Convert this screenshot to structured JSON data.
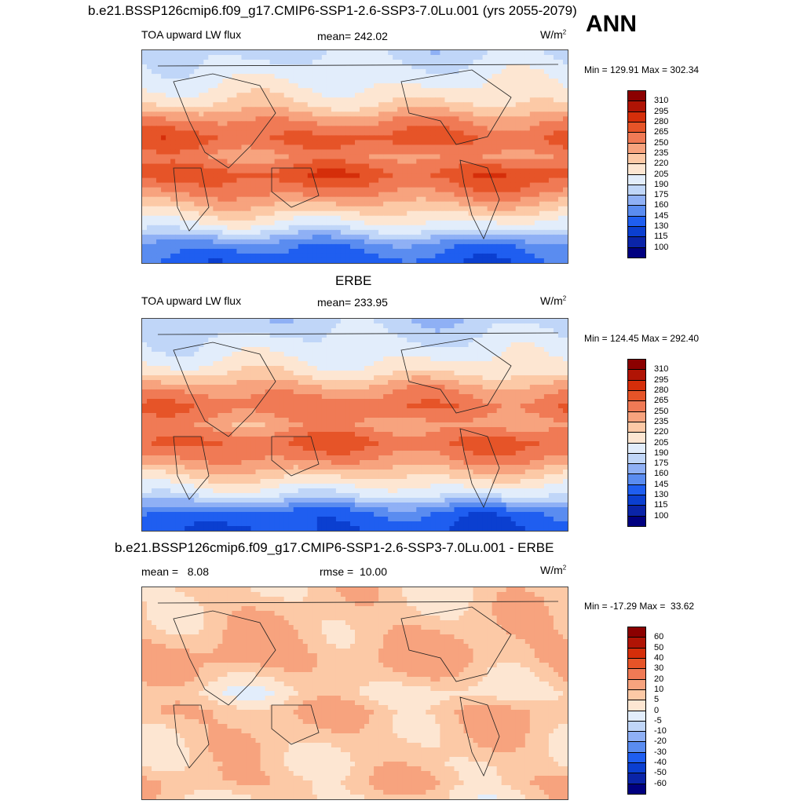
{
  "header": {
    "title": "b.e21.BSSP126cmip6.f09_g17.CMIP6-SSP1-2.6-SSP3-7.0Lu.001 (yrs 2055-2079)",
    "season": "ANN"
  },
  "panels": [
    {
      "id": "model",
      "title": "",
      "left_label": "TOA upward LW flux",
      "center_label": "mean= 242.02",
      "units": "W/m",
      "units_sup": "2",
      "minmax": "Min = 129.91 Max = 302.34",
      "colorbar": [
        "310",
        "295",
        "280",
        "265",
        "250",
        "235",
        "220",
        "205",
        "190",
        "175",
        "160",
        "145",
        "130",
        "115",
        "100"
      ]
    },
    {
      "id": "obs",
      "title": "ERBE",
      "left_label": "TOA upward LW flux",
      "center_label": "mean= 233.95",
      "units": "W/m",
      "units_sup": "2",
      "minmax": "Min = 124.45 Max = 292.40",
      "colorbar": [
        "310",
        "295",
        "280",
        "265",
        "250",
        "235",
        "220",
        "205",
        "190",
        "175",
        "160",
        "145",
        "130",
        "115",
        "100"
      ]
    },
    {
      "id": "diff",
      "title": "b.e21.BSSP126cmip6.f09_g17.CMIP6-SSP1-2.6-SSP3-7.0Lu.001 - ERBE",
      "left_label": "mean =   8.08",
      "center_label": "rmse =  10.00",
      "units": "W/m",
      "units_sup": "2",
      "minmax": "Min = -17.29 Max =  33.62",
      "colorbar": [
        "60",
        "50",
        "40",
        "30",
        "20",
        "10",
        "5",
        "0",
        "-5",
        "-10",
        "-20",
        "-30",
        "-40",
        "-50",
        "-60"
      ]
    }
  ],
  "chart_data": [
    {
      "type": "heatmap",
      "title": "",
      "variable": "TOA upward LW flux",
      "units": "W/m2",
      "mean": 242.02,
      "min": 129.91,
      "max": 302.34,
      "levels": [
        100,
        115,
        130,
        145,
        160,
        175,
        190,
        205,
        220,
        235,
        250,
        265,
        280,
        295,
        310
      ],
      "zonal_bands": [
        {
          "lat": 90,
          "value": 185
        },
        {
          "lat": 60,
          "value": 205
        },
        {
          "lat": 45,
          "value": 220
        },
        {
          "lat": 30,
          "value": 250
        },
        {
          "lat": 15,
          "value": 270
        },
        {
          "lat": 0,
          "value": 250
        },
        {
          "lat": -15,
          "value": 275
        },
        {
          "lat": -30,
          "value": 255
        },
        {
          "lat": -45,
          "value": 225
        },
        {
          "lat": -60,
          "value": 195
        },
        {
          "lat": -75,
          "value": 150
        },
        {
          "lat": -90,
          "value": 135
        }
      ]
    },
    {
      "type": "heatmap",
      "title": "ERBE",
      "variable": "TOA upward LW flux",
      "units": "W/m2",
      "mean": 233.95,
      "min": 124.45,
      "max": 292.4,
      "levels": [
        100,
        115,
        130,
        145,
        160,
        175,
        190,
        205,
        220,
        235,
        250,
        265,
        280,
        295,
        310
      ],
      "zonal_bands": [
        {
          "lat": 90,
          "value": 180
        },
        {
          "lat": 60,
          "value": 200
        },
        {
          "lat": 45,
          "value": 215
        },
        {
          "lat": 30,
          "value": 245
        },
        {
          "lat": 15,
          "value": 262
        },
        {
          "lat": 0,
          "value": 245
        },
        {
          "lat": -15,
          "value": 268
        },
        {
          "lat": -30,
          "value": 250
        },
        {
          "lat": -45,
          "value": 220
        },
        {
          "lat": -60,
          "value": 190
        },
        {
          "lat": -75,
          "value": 140
        },
        {
          "lat": -90,
          "value": 130
        }
      ]
    },
    {
      "type": "heatmap",
      "title": "b.e21.BSSP126cmip6.f09_g17.CMIP6-SSP1-2.6-SSP3-7.0Lu.001 - ERBE",
      "units": "W/m2",
      "mean": 8.08,
      "rmse": 10.0,
      "min": -17.29,
      "max": 33.62,
      "levels": [
        -60,
        -50,
        -40,
        -30,
        -20,
        -10,
        -5,
        0,
        5,
        10,
        20,
        30,
        40,
        50,
        60
      ],
      "zonal_bands": [
        {
          "lat": 90,
          "value": 6
        },
        {
          "lat": 60,
          "value": 8
        },
        {
          "lat": 45,
          "value": 10
        },
        {
          "lat": 30,
          "value": 12
        },
        {
          "lat": 15,
          "value": 8
        },
        {
          "lat": 0,
          "value": 3
        },
        {
          "lat": -15,
          "value": 10
        },
        {
          "lat": -30,
          "value": 8
        },
        {
          "lat": -45,
          "value": 7
        },
        {
          "lat": -60,
          "value": 6
        },
        {
          "lat": -75,
          "value": 9
        },
        {
          "lat": -90,
          "value": 5
        }
      ]
    }
  ],
  "colors": {
    "abs_palette": [
      "#000080",
      "#0a24a8",
      "#0b3fd0",
      "#1f5ef0",
      "#5a8cf0",
      "#8fb0f5",
      "#c0d6f8",
      "#e2edfb",
      "#fde6d2",
      "#fcc9a6",
      "#f7a37e",
      "#f07a55",
      "#e65428",
      "#d52e0a",
      "#b01405",
      "#8b0000"
    ],
    "diff_palette": [
      "#000080",
      "#0a24a8",
      "#0b3fd0",
      "#1f5ef0",
      "#5a8cf0",
      "#8fb0f5",
      "#c0d6f8",
      "#e2edfb",
      "#fde6d2",
      "#fcc9a6",
      "#f7a37e",
      "#f07a55",
      "#e65428",
      "#d52e0a",
      "#b01405",
      "#8b0000"
    ]
  }
}
